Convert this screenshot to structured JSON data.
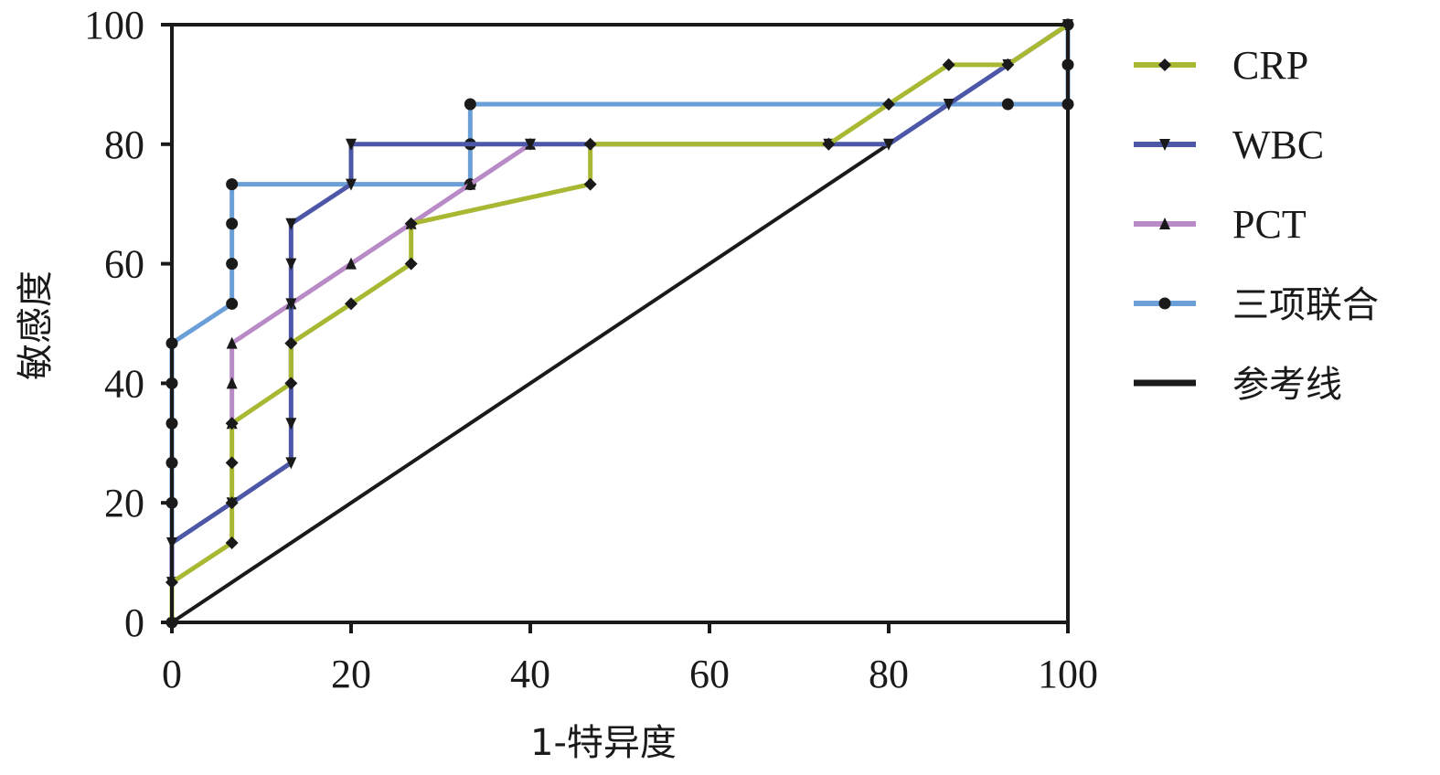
{
  "chart_data": {
    "type": "line",
    "xlabel": "1-特异度",
    "ylabel": "敏感度",
    "xlim": [
      0,
      100
    ],
    "ylim": [
      0,
      100
    ],
    "xticks": [
      0,
      20,
      40,
      60,
      80,
      100
    ],
    "yticks": [
      0,
      20,
      40,
      60,
      80,
      100
    ],
    "grid": false,
    "legend_position": "right",
    "series": [
      {
        "name": "CRP",
        "color": "#a9b833",
        "marker": "diamond",
        "points": [
          [
            0,
            0
          ],
          [
            0,
            6.7
          ],
          [
            6.7,
            13.3
          ],
          [
            6.7,
            20
          ],
          [
            6.7,
            26.7
          ],
          [
            6.7,
            33.3
          ],
          [
            13.3,
            40
          ],
          [
            13.3,
            46.7
          ],
          [
            20,
            53.3
          ],
          [
            26.7,
            60
          ],
          [
            26.7,
            66.7
          ],
          [
            46.7,
            73.3
          ],
          [
            46.7,
            80
          ],
          [
            73.3,
            80
          ],
          [
            80,
            86.7
          ],
          [
            86.7,
            93.3
          ],
          [
            93.3,
            93.3
          ],
          [
            100,
            100
          ]
        ]
      },
      {
        "name": "WBC",
        "color": "#4c57a8",
        "marker": "triangle-down",
        "points": [
          [
            0,
            6.7
          ],
          [
            0,
            13.3
          ],
          [
            6.7,
            20
          ],
          [
            13.3,
            26.7
          ],
          [
            13.3,
            33.3
          ],
          [
            13.3,
            53.3
          ],
          [
            13.3,
            60
          ],
          [
            13.3,
            66.7
          ],
          [
            20,
            73.3
          ],
          [
            20,
            80
          ],
          [
            40,
            80
          ],
          [
            73.3,
            80
          ],
          [
            80,
            80
          ],
          [
            86.7,
            86.7
          ],
          [
            93.3,
            93.3
          ],
          [
            100,
            100
          ]
        ]
      },
      {
        "name": "PCT",
        "color": "#b88ac6",
        "marker": "triangle-up",
        "points": [
          [
            6.7,
            33.3
          ],
          [
            6.7,
            40
          ],
          [
            6.7,
            46.7
          ],
          [
            13.3,
            53.3
          ],
          [
            20,
            60
          ],
          [
            26.7,
            66.7
          ],
          [
            33.3,
            73.3
          ],
          [
            40,
            80
          ]
        ]
      },
      {
        "name": "三项联合",
        "color": "#6a9fd8",
        "marker": "circle",
        "points": [
          [
            0,
            0
          ],
          [
            0,
            20
          ],
          [
            0,
            26.7
          ],
          [
            0,
            33.3
          ],
          [
            0,
            40
          ],
          [
            0,
            46.7
          ],
          [
            6.7,
            53.3
          ],
          [
            6.7,
            60
          ],
          [
            6.7,
            66.7
          ],
          [
            6.7,
            73.3
          ],
          [
            33.3,
            73.3
          ],
          [
            33.3,
            80
          ],
          [
            33.3,
            86.7
          ],
          [
            93.3,
            86.7
          ],
          [
            100,
            86.7
          ],
          [
            100,
            93.3
          ],
          [
            100,
            100
          ]
        ]
      },
      {
        "name": "参考线",
        "color": "#1a1a1a",
        "marker": "none",
        "points": [
          [
            0,
            0
          ],
          [
            100,
            100
          ]
        ]
      }
    ]
  }
}
